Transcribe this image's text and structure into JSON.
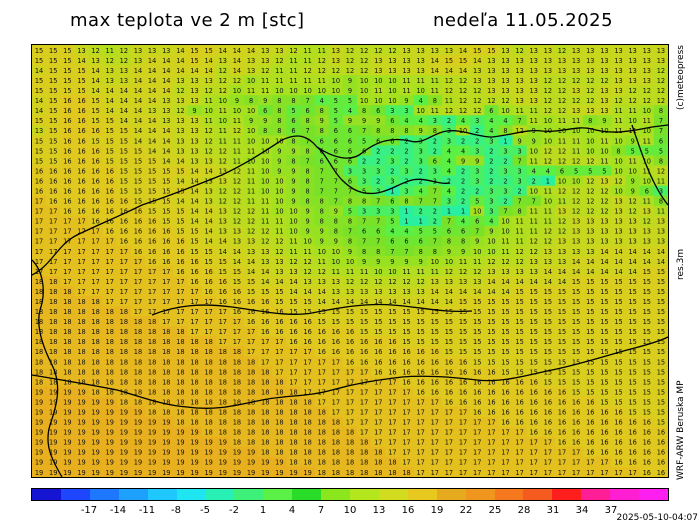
{
  "title": "max teplota ve 2 m [stc]",
  "date": "nedeľa 11.05.2025",
  "credit": "(c)meteopress",
  "resolution": "res.3m",
  "model": "WRF-ARW Beruska MP",
  "timestamp": "2025-05-10-04:07",
  "colorbar": {
    "ticks": [
      "-17",
      "-14",
      "-11",
      "-8",
      "-5",
      "-2",
      "1",
      "4",
      "7",
      "10",
      "13",
      "16",
      "19",
      "22",
      "25",
      "28",
      "31",
      "34",
      "37"
    ],
    "colors": [
      "#1414d2",
      "#1e46ff",
      "#1e78ff",
      "#1ea0ff",
      "#1ec8ff",
      "#1ee6f0",
      "#28f0b4",
      "#3cf07a",
      "#5af046",
      "#28dc28",
      "#8ce61e",
      "#b4e61e",
      "#d2dc1e",
      "#e6c81e",
      "#e6aa1e",
      "#f0961e",
      "#f5781e",
      "#f55a1e",
      "#ff1e1e",
      "#ff1e96",
      "#ff1ed2",
      "#ff1ef0"
    ]
  },
  "grid_rows": [
    "15 15 15 13 12 11 12 13 13 13 14 15 15 14 14 14 13 13 12 11 11 13 12 12 12 12 13 13 13 13 14 15 15 13 12 13 13 12 13 13 13 13 13 13 13",
    "15 15 15 14 13 12 12 13 14 14 14 15 14 13 14 13 13 12 11 11 12 13 12 12 13 13 13 13 14 15 15 14 13 13 13 13 13 13 13 13 13 13 13 13 13",
    "14 15 15 15 14 13 13 14 14 14 14 14 14 12 14 13 12 11 11 12 12 12 12 12 13 13 13 13 14 14 14 13 13 13 13 13 13 13 13 13 13 13 13 13 12",
    "15 15 15 15 14 13 13 14 14 14 13 13 13 12 12 10 11 11 11 11 11 10 9 10 10 10 11 11 11 12 12 13 13 13 13 13 12 12 12 12 12 13 13 13 12",
    "15 15 15 15 14 14 14 14 14 14 12 13 12 12 10 11 11 10 10 10 10 10 9 10 11 10 11 10 11 12 12 12 13 13 13 13 12 12 13 12 13 13 12 12 12",
    "14 15 16 16 15 14 14 14 14 13 13 13 11 10 9 8 9 8 8 7 4 5 5 10 10 10 9 4 8 11 12 12 12 12 13 13 12 12 12 12 13 12 12 12 12",
    "14 15 16 16 15 14 14 14 13 13 12 9 10 11 10 10 6 8 5 6 8 5 4 8 6 3 3 10 11 12 12 12 6 10 11 11 12 12 13 13 13 11 11 10 8",
    "15 15 16 16 15 15 14 14 14 13 13 13 11 10 11 9 9 8 6 8 9 5 9 9 9 6 4 4 3 2 4 3 4 4 7 11 10 11 11 8 9 11 10 11 7",
    "13 15 16 16 16 15 15 14 14 14 13 13 12 11 12 10 8 8 6 7 8 6 6 7 8 8 8 9 8 3 10 2 4 8 12 9 10 10 10 10 10 11 11 10 7",
    "15 15 16 16 15 15 15 14 14 14 13 13 12 11 11 10 10 10 8 7 6 6 6 5 6 6 2 3 2 3 2 2 3 1 9 9 10 11 11 10 11 10 9 11 6",
    "15 15 16 16 16 15 15 15 14 14 13 13 12 12 11 11 10 9 9 8 6 6 6 6 2 2 2 3 2 4 4 3 2 3 3 10 12 12 11 10 10 8 5 5 5",
    "15 15 16 16 16 15 15 15 15 14 14 13 13 12 11 10 10 9 8 7 6 6 6 2 2 3 2 3 6 4 9 9 2 2 7 11 12 12 12 12 11 10 11 10 8",
    "16 16 16 16 16 16 15 15 15 15 15 14 14 13 12 11 10 9 9 8 7 7 3 3 3 2 3 2 3 4 2 3 2 3 3 4 4 6 5 5 5 10 10 11 12",
    "16 16 16 16 16 16 15 15 15 15 14 14 13 13 12 11 10 10 9 8 7 7 6 3 2 3 2 2 3 2 2 3 2 2 3 2 1 10 10 12 13 12 9 10 11",
    "16 16 16 16 16 16 15 15 15 15 15 14 13 12 12 11 10 10 9 8 7 7 7 5 3 1 3 4 7 4 2 2 3 3 2 10 11 12 12 12 12 10 9 6 3",
    "17 16 16 16 16 16 16 15 15 15 14 14 13 12 12 11 11 10 9 8 8 7 8 8 7 6 8 7 7 3 2 5 3 2 7 7 10 11 12 12 12 13 12 11 8",
    "17 17 16 16 16 16 16 16 15 15 15 14 14 13 12 12 11 10 10 9 8 9 5 3 3 3 1 2 2 1 1 10 3 7 8 11 11 13 12 12 12 13 12 13 11",
    "17 17 17 17 16 16 16 16 16 15 15 14 14 13 12 12 11 11 10 9 8 8 8 7 7 5 1 1 2 7 4 6 4 10 11 11 11 12 13 13 13 13 13 12 13",
    "17 17 17 17 17 16 16 16 16 16 15 15 14 13 13 12 12 11 10 9 9 8 7 6 6 4 4 5 5 6 6 7 9 10 11 11 12 12 13 13 13 13 13 13 13",
    "17 17 17 17 17 17 16 16 16 16 16 15 14 14 13 13 12 12 11 10 9 9 8 7 7 6 6 6 7 8 8 9 10 11 11 12 12 13 13 13 13 13 13 13 13",
    "17 17 17 17 17 17 17 16 16 16 16 15 15 14 14 13 13 12 11 11 10 10 9 8 8 7 7 8 8 9 9 10 10 11 12 12 13 13 13 13 14 14 14 14 14",
    "17 17 17 17 17 17 17 17 16 16 16 16 15 15 14 14 13 13 12 12 11 10 10 9 9 9 9 9 10 10 11 11 12 12 12 13 13 13 14 14 14 14 14 14 14",
    "17 17 17 17 17 17 17 17 17 17 16 16 16 15 15 14 14 13 13 12 12 11 11 11 10 10 11 11 11 12 12 12 13 13 13 13 14 14 14 14 14 14 14 15 15",
    "18 18 17 17 17 17 17 17 17 17 17 16 16 16 15 15 14 14 14 13 13 13 12 12 12 12 12 12 13 13 13 13 14 14 14 14 14 14 15 15 15 15 15 15 15",
    "18 18 18 17 17 17 17 17 17 17 17 17 16 16 16 15 15 15 14 14 14 13 13 13 13 13 13 13 14 14 14 14 14 14 15 15 15 15 15 15 15 15 15 15 15",
    "18 18 18 18 18 17 17 17 17 17 17 17 17 16 16 16 16 15 15 15 14 14 14 14 14 14 14 14 14 14 15 15 15 15 15 15 15 15 15 15 15 15 15 15 15",
    "18 18 18 18 18 18 18 17 17 17 17 17 17 17 16 16 16 16 15 15 15 15 15 15 15 15 15 15 15 15 15 15 15 15 15 15 15 15 15 15 15 15 15 15 15",
    "18 18 18 18 18 18 18 18 18 17 17 17 17 17 17 16 16 16 16 16 15 15 15 15 15 15 15 15 15 15 15 15 15 15 15 15 15 15 15 15 15 15 15 15 15",
    "18 18 18 18 18 18 18 18 18 18 18 17 17 17 17 17 16 16 16 16 16 16 16 15 15 15 15 15 15 15 15 15 15 15 15 15 15 15 15 15 15 15 15 15 15",
    "18 18 18 18 18 18 18 18 18 18 18 18 18 17 17 17 17 17 16 16 16 16 16 16 16 16 15 15 15 15 15 15 15 15 15 15 15 15 15 15 15 15 15 15 15",
    "18 18 18 18 18 18 18 18 18 18 18 18 18 18 18 17 17 17 17 17 16 16 16 16 16 16 16 16 16 15 15 15 15 15 15 15 15 15 15 15 15 15 15 15 15",
    "18 18 18 18 18 18 18 18 18 18 18 18 18 18 18 18 17 17 17 17 17 17 16 16 16 16 16 16 16 16 16 15 15 15 15 15 15 15 15 15 15 15 15 15 15",
    "18 18 18 18 18 18 18 18 18 18 18 18 18 18 18 18 18 17 17 17 17 17 17 17 16 16 16 16 16 16 16 16 16 15 15 15 15 15 15 15 15 15 15 15 15",
    "18 18 18 18 18 18 18 18 18 18 18 18 18 18 18 18 18 18 17 17 17 17 17 17 17 17 16 16 16 16 16 16 16 16 16 16 15 15 15 15 15 15 15 15 15",
    "19 19 19 19 18 18 18 18 18 18 18 18 18 18 18 18 18 18 18 17 17 17 17 17 17 17 17 16 16 16 16 16 16 16 16 16 16 16 15 15 15 15 15 15 15",
    "19 19 19 19 19 19 18 18 18 18 18 18 18 18 18 18 18 18 18 18 17 17 17 17 17 17 17 17 17 16 16 16 16 16 16 16 16 16 16 16 15 15 15 15 15",
    "19 19 19 19 19 19 19 19 18 18 18 18 18 18 18 18 18 18 18 18 18 17 17 17 17 17 17 17 17 17 17 16 16 16 16 16 16 16 16 16 16 16 15 15 15",
    "19 19 19 19 19 19 19 19 19 19 18 18 18 18 18 18 18 18 18 18 18 18 17 17 17 17 17 17 17 17 17 17 17 16 16 16 16 16 16 16 16 16 16 16 15",
    "19 19 19 19 19 19 19 19 19 19 19 19 18 18 18 18 18 18 18 18 18 18 18 17 17 17 17 17 17 17 17 17 17 17 17 16 16 16 16 16 16 16 16 16 16",
    "19 19 19 19 19 19 19 19 19 19 19 19 19 19 18 18 18 18 18 18 18 18 18 18 17 17 17 17 17 17 17 17 17 17 17 17 17 16 16 16 16 16 16 16 16",
    "19 19 19 19 19 19 19 19 19 19 19 19 19 19 19 19 18 18 18 18 18 18 18 18 18 17 17 17 17 17 17 17 17 17 17 17 17 17 17 16 16 16 16 16 16",
    "19 19 19 19 19 19 19 19 19 19 19 19 19 19 19 19 19 19 18 18 18 18 18 18 18 18 17 17 17 17 17 17 17 17 17 17 17 17 17 17 17 16 16 16 16",
    "19 19 19 19 19 19 19 19 19 19 19 19 19 19 19 19 19 19 19 19 18 18 18 18 18 18 18 17 17 17 17 17 17 17 17 17 17 17 17 17 17 17 17 16 16"
  ]
}
